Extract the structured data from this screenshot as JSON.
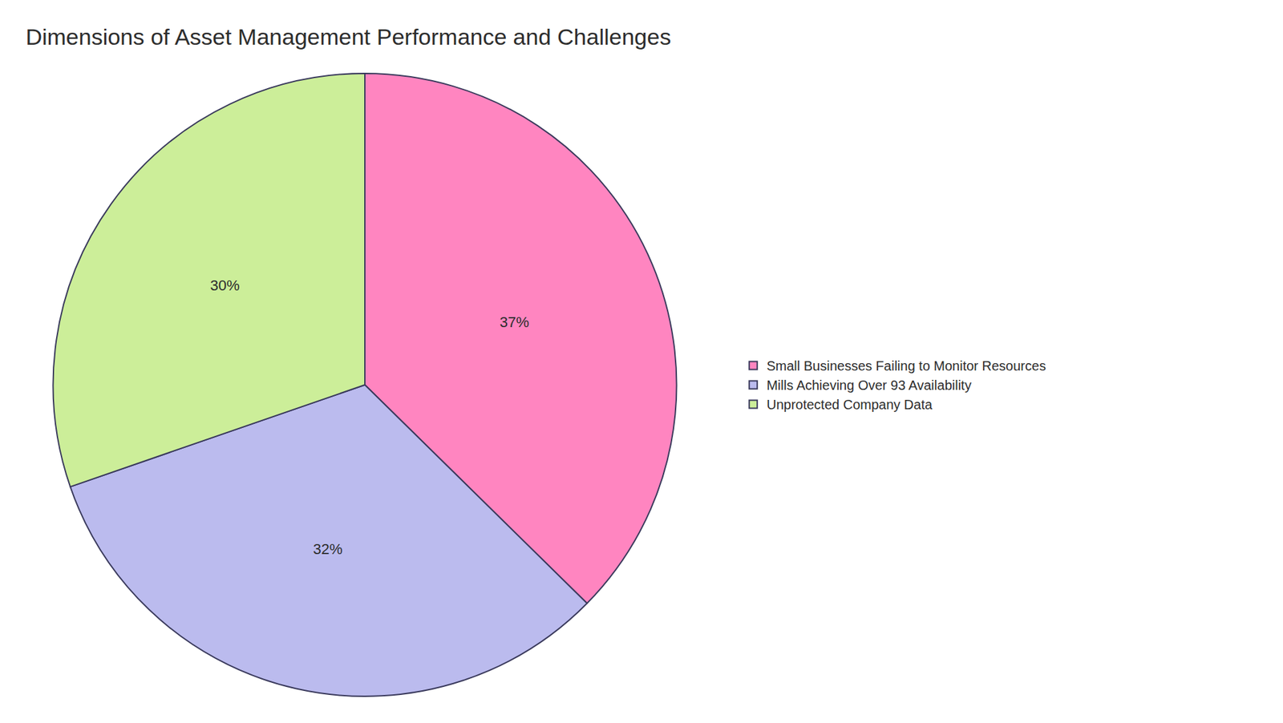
{
  "chart_data": {
    "type": "pie",
    "title": "Dimensions of Asset Management Performance and Challenges",
    "categories": [
      "Small Businesses Failing to Monitor Resources",
      "Mills Achieving Over 93 Availability",
      "Unprotected Company Data"
    ],
    "values": [
      37,
      32,
      30
    ],
    "value_labels": [
      "37%",
      "32%",
      "30%"
    ],
    "colors": [
      "#FF85C0",
      "#BBBBEE",
      "#CCEE99"
    ],
    "data_labels": true,
    "legend": "right"
  }
}
